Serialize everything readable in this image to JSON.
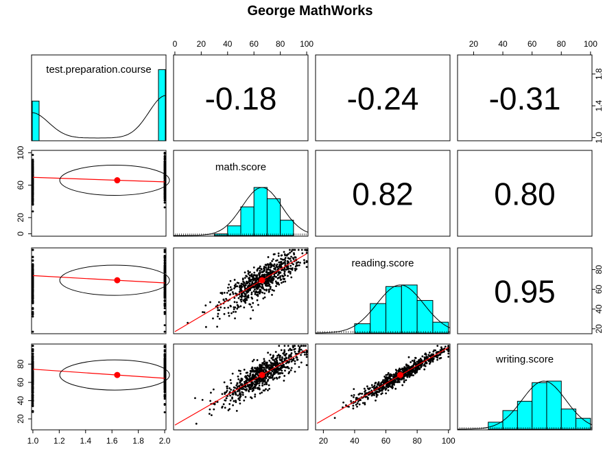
{
  "title": "George MathWorks",
  "chart_data": {
    "type": "scatter",
    "variables": [
      "test.preparation.course",
      "math.score",
      "reading.score",
      "writing.score"
    ],
    "correlations": [
      {
        "row": 0,
        "col": 1,
        "value": "-0.18"
      },
      {
        "row": 0,
        "col": 2,
        "value": "-0.24"
      },
      {
        "row": 0,
        "col": 3,
        "value": "-0.31"
      },
      {
        "row": 1,
        "col": 2,
        "value": "0.82"
      },
      {
        "row": 1,
        "col": 3,
        "value": "0.80"
      },
      {
        "row": 2,
        "col": 3,
        "value": "0.95"
      }
    ],
    "axes": {
      "test.preparation.course": {
        "range": [
          1,
          2
        ],
        "ticks": [
          "1.0",
          "1.2",
          "1.4",
          "1.6",
          "1.8",
          "2.0"
        ]
      },
      "math.score": {
        "range": [
          0,
          100
        ],
        "ticks": [
          "0",
          "20",
          "40",
          "60",
          "80",
          "100"
        ],
        "left_ticks": [
          "0",
          "20",
          "60",
          "100"
        ]
      },
      "reading.score": {
        "range": [
          17,
          100
        ],
        "ticks": [
          "20",
          "40",
          "60",
          "80"
        ]
      },
      "writing.score": {
        "range": [
          10,
          100
        ],
        "ticks": [
          "20",
          "40",
          "60",
          "80",
          "100"
        ]
      },
      "test.preparation.course.right": {
        "ticks": [
          "1.0",
          "1.4",
          "1.8"
        ]
      }
    },
    "histograms": {
      "test.preparation.course": {
        "bins": [
          [
            1.0,
            1.05
          ],
          [
            1.95,
            2.0
          ]
        ],
        "counts": [
          358,
          642
        ]
      },
      "math.score": {
        "bin_width": 10,
        "bins_start": 30,
        "counts": [
          11,
          67,
          198,
          332,
          254,
          106
        ]
      },
      "reading.score": {
        "bin_width": 10,
        "bins_start": 40,
        "counts": [
          60,
          190,
          300,
          310,
          210,
          70
        ]
      },
      "writing.score": {
        "bin_width": 10,
        "bins_start": 30,
        "counts": [
          45,
          120,
          180,
          300,
          310,
          130,
          70
        ]
      }
    },
    "means": {
      "test.preparation.course": 1.64,
      "math.score": 66.1,
      "reading.score": 69.2,
      "writing.score": 68.1
    },
    "regression": {
      "math_vs_prep": {
        "intercept_at_1": 69.7,
        "at_2": 64.1
      },
      "reading_vs_prep": {
        "at_1": 73.9,
        "at_2": 66.5
      },
      "writing_vs_prep": {
        "at_1": 74.4,
        "at_2": 64.5
      },
      "reading_vs_math": {
        "slope": 0.79,
        "intercept": 17.1
      },
      "writing_vs_math": {
        "slope": 0.83,
        "intercept": 13.2
      },
      "writing_vs_reading": {
        "slope": 0.99,
        "intercept": -0.7
      }
    },
    "grid": false,
    "legend": "none"
  }
}
